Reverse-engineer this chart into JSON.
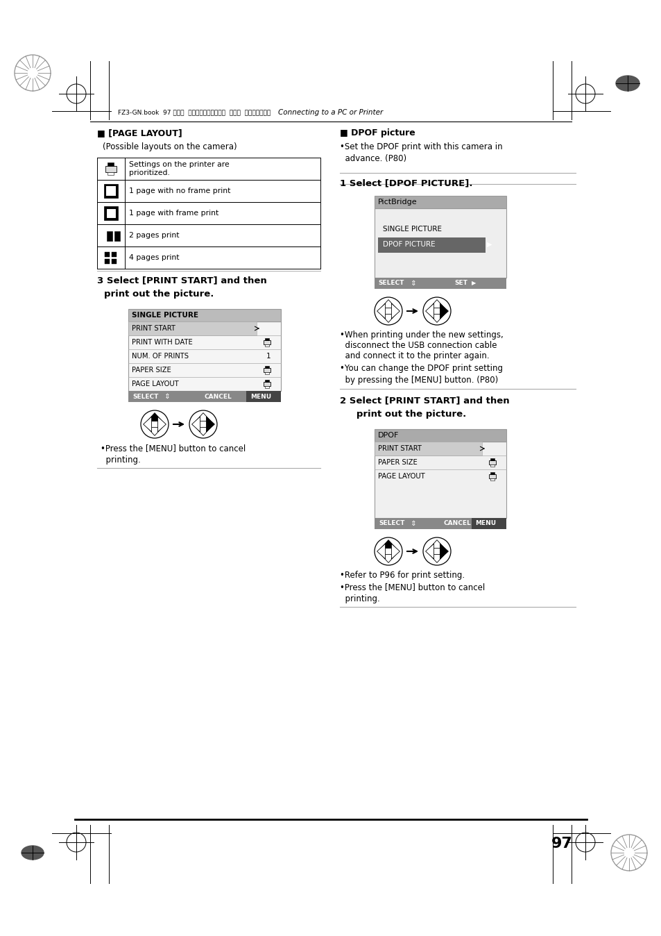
{
  "bg_color": "#ffffff",
  "page_number": "97",
  "header_text": "FZ3-GN.book  97 ページ  ２００４年７月２７日  火曜日  午前９時２５分",
  "center_header": "Connecting to a PC or Printer",
  "left_section_title": "■ [PAGE LAYOUT]",
  "left_section_sub": "(Possible layouts on the camera)",
  "table_descriptions": [
    "Settings on the printer are\nprioritized.",
    "1 page with no frame print",
    "1 page with frame print",
    "2 pages print",
    "4 pages print"
  ],
  "step3_line1": "3 Select [PRINT START] and then",
  "step3_line2": "   print out the picture.",
  "sp_menu_title": "SINGLE PICTURE",
  "sp_menu_items": [
    "PRINT START",
    "PRINT WITH DATE",
    "NUM. OF PRINTS",
    "PAPER SIZE",
    "PAGE LAYOUT"
  ],
  "sp_menu_icons": [
    false,
    true,
    "1",
    true,
    true
  ],
  "step3_note": "•Press the [MENU] button to cancel\n  printing.",
  "right_section_title": "■ DPOF picture",
  "right_section_text": "•Set the DPOF print with this camera in\n  advance. (P80)",
  "step1_line": "1 Select [DPOF PICTURE].",
  "pb_menu_title": "PictBridge",
  "pb_menu_items": [
    "SINGLE PICTURE",
    "DPOF PICTURE"
  ],
  "pb_selected": "DPOF PICTURE",
  "right_note1_line1": "•When printing under the new settings,",
  "right_note1_line2": "  disconnect the USB connection cable",
  "right_note1_line3": "  and connect it to the printer again.",
  "right_note2": "•You can change the DPOF print setting\n  by pressing the [MENU] button. (P80)",
  "step2_line1": "2 Select [PRINT START] and then",
  "step2_line2": "   print out the picture.",
  "dpof_menu_title": "DPOF",
  "dpof_menu_items": [
    "PRINT START",
    "PAPER SIZE",
    "PAGE LAYOUT"
  ],
  "dpof_menu_icons": [
    false,
    true,
    true
  ],
  "right_note3": "•Refer to P96 for print setting.",
  "right_note4": "•Press the [MENU] button to cancel\n  printing."
}
